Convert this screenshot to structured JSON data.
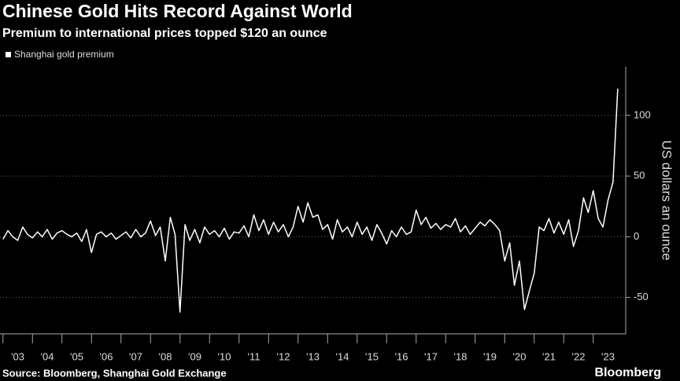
{
  "chart_data": {
    "type": "line",
    "title": "Chinese Gold Hits Record Against World",
    "subtitle": "Premium to international prices topped $120 an ounce",
    "y_label": "US dollars an ounce",
    "source": "Source: Bloomberg, Shanghai Gold Exchange",
    "brand": "Bloomberg",
    "x": [
      2003,
      2003.17,
      2003.33,
      2003.5,
      2003.67,
      2003.83,
      2004,
      2004.17,
      2004.33,
      2004.5,
      2004.67,
      2004.83,
      2005,
      2005.17,
      2005.33,
      2005.5,
      2005.67,
      2005.83,
      2006,
      2006.17,
      2006.33,
      2006.5,
      2006.67,
      2006.83,
      2007,
      2007.17,
      2007.33,
      2007.5,
      2007.67,
      2007.83,
      2008,
      2008.17,
      2008.33,
      2008.5,
      2008.67,
      2008.83,
      2009,
      2009.17,
      2009.33,
      2009.5,
      2009.67,
      2009.83,
      2010,
      2010.17,
      2010.33,
      2010.5,
      2010.67,
      2010.83,
      2011,
      2011.17,
      2011.33,
      2011.5,
      2011.67,
      2011.83,
      2012,
      2012.17,
      2012.33,
      2012.5,
      2012.67,
      2012.83,
      2013,
      2013.17,
      2013.33,
      2013.5,
      2013.67,
      2013.83,
      2014,
      2014.17,
      2014.33,
      2014.5,
      2014.67,
      2014.83,
      2015,
      2015.17,
      2015.33,
      2015.5,
      2015.67,
      2015.83,
      2016,
      2016.17,
      2016.33,
      2016.5,
      2016.67,
      2016.83,
      2017,
      2017.17,
      2017.33,
      2017.5,
      2017.67,
      2017.83,
      2018,
      2018.17,
      2018.33,
      2018.5,
      2018.67,
      2018.83,
      2019,
      2019.17,
      2019.33,
      2019.5,
      2019.67,
      2019.83,
      2020,
      2020.17,
      2020.33,
      2020.5,
      2020.67,
      2020.83,
      2021,
      2021.17,
      2021.33,
      2021.5,
      2021.67,
      2021.83,
      2022,
      2022.17,
      2022.33,
      2022.5,
      2022.67,
      2022.83,
      2023,
      2023.17,
      2023.33,
      2023.5,
      2023.67,
      2023.83
    ],
    "series": [
      {
        "name": "Shanghai gold premium",
        "color": "#ffffff",
        "values": [
          -2,
          5,
          0,
          -3,
          8,
          2,
          -1,
          4,
          0,
          6,
          -2,
          3,
          5,
          2,
          0,
          3,
          -4,
          6,
          -13,
          2,
          4,
          0,
          3,
          -2,
          1,
          4,
          -1,
          6,
          0,
          3,
          13,
          1,
          8,
          -20,
          16,
          2,
          -62,
          10,
          -3,
          6,
          -5,
          8,
          2,
          5,
          0,
          7,
          -2,
          4,
          3,
          9,
          0,
          18,
          5,
          14,
          2,
          12,
          4,
          10,
          0,
          8,
          25,
          12,
          28,
          16,
          18,
          6,
          10,
          -2,
          14,
          4,
          8,
          0,
          12,
          2,
          8,
          -3,
          10,
          3,
          -6,
          5,
          0,
          8,
          2,
          4,
          22,
          10,
          16,
          7,
          11,
          6,
          10,
          8,
          15,
          4,
          9,
          2,
          7,
          12,
          9,
          14,
          10,
          5,
          -20,
          -5,
          -40,
          -20,
          -60,
          -45,
          -30,
          8,
          5,
          15,
          3,
          12,
          2,
          14,
          -8,
          5,
          32,
          20,
          38,
          15,
          8,
          30,
          45,
          122
        ]
      }
    ],
    "xlim": [
      2002.9,
      2024.1
    ],
    "ylim": [
      -80,
      140
    ],
    "yticks": [
      -50,
      0,
      50,
      100
    ],
    "xticks": [
      {
        "value": 2003.5,
        "label": "'03"
      },
      {
        "value": 2004.5,
        "label": "'04"
      },
      {
        "value": 2005.5,
        "label": "'05"
      },
      {
        "value": 2006.5,
        "label": "'06"
      },
      {
        "value": 2007.5,
        "label": "'07"
      },
      {
        "value": 2008.5,
        "label": "'08"
      },
      {
        "value": 2009.5,
        "label": "'09"
      },
      {
        "value": 2010.5,
        "label": "'10"
      },
      {
        "value": 2011.5,
        "label": "'11"
      },
      {
        "value": 2012.5,
        "label": "'12"
      },
      {
        "value": 2013.5,
        "label": "'13"
      },
      {
        "value": 2014.5,
        "label": "'14"
      },
      {
        "value": 2015.5,
        "label": "'15"
      },
      {
        "value": 2016.5,
        "label": "'16"
      },
      {
        "value": 2017.5,
        "label": "'17"
      },
      {
        "value": 2018.5,
        "label": "'18"
      },
      {
        "value": 2019.5,
        "label": "'19"
      },
      {
        "value": 2020.5,
        "label": "'20"
      },
      {
        "value": 2021.5,
        "label": "'21"
      },
      {
        "value": 2022.5,
        "label": "'22"
      },
      {
        "value": 2023.5,
        "label": "'23"
      }
    ],
    "grid": true
  }
}
